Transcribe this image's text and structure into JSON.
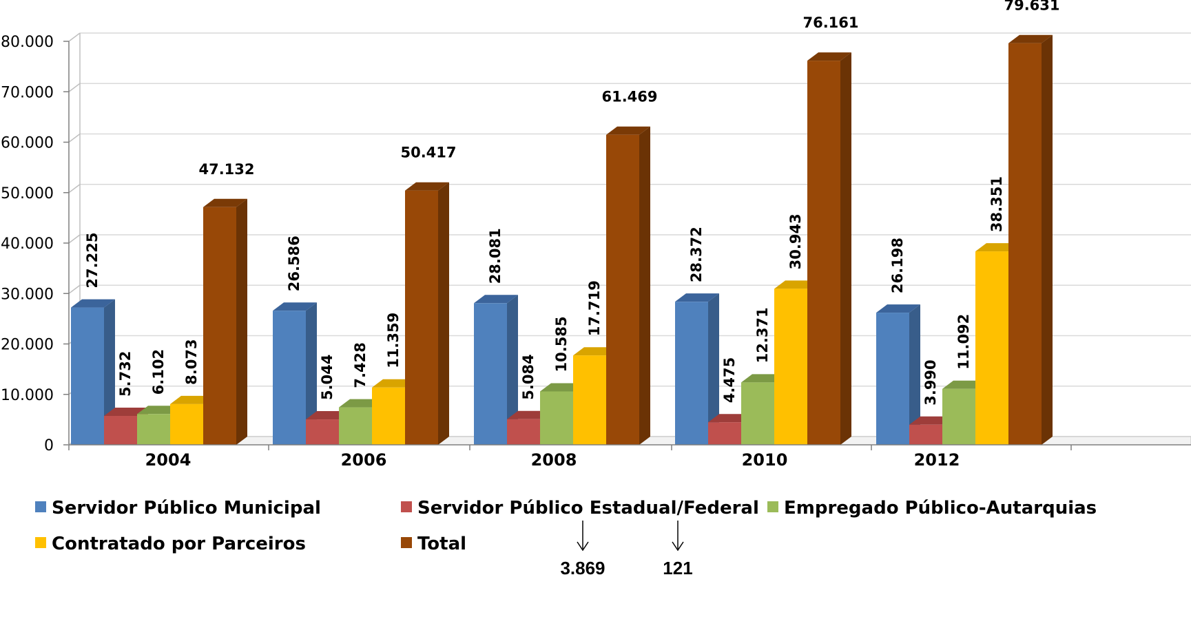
{
  "chart_data": {
    "type": "bar",
    "categories": [
      "2004",
      "2006",
      "2008",
      "2010",
      "2012"
    ],
    "series": [
      {
        "name": "Servidor Público Municipal",
        "color": "#4F81BD",
        "side": "#385D8A",
        "top": "#3B649B",
        "values": [
          27225,
          26586,
          28081,
          28372,
          26198
        ],
        "labels": [
          "27.225",
          "26.586",
          "28.081",
          "28.372",
          "26.198"
        ]
      },
      {
        "name": "Servidor Público Estadual/Federal",
        "color": "#C0504D",
        "side": "#8C3836",
        "top": "#9E3D3A",
        "values": [
          5732,
          5044,
          5084,
          4475,
          3990
        ],
        "labels": [
          "5.732",
          "5.044",
          "5.084",
          "4.475",
          "3.990"
        ]
      },
      {
        "name": "Empregado Público-Autarquias",
        "color": "#9BBB59",
        "side": "#71893F",
        "top": "#7C9A45",
        "values": [
          6102,
          7428,
          10585,
          12371,
          11092
        ],
        "labels": [
          "6.102",
          "7.428",
          "10.585",
          "12.371",
          "11.092"
        ]
      },
      {
        "name": "Contratado por Parceiros",
        "color": "#FFC000",
        "side": "#BF9000",
        "top": "#D9A400",
        "values": [
          8073,
          11359,
          17719,
          30943,
          38351
        ],
        "labels": [
          "8.073",
          "11.359",
          "17.719",
          "30.943",
          "38.351"
        ]
      },
      {
        "name": "Total",
        "color": "#984807",
        "side": "#6B3305",
        "top": "#7A3A06",
        "values": [
          47132,
          50417,
          61469,
          76161,
          79631
        ],
        "labels": [
          "47.132",
          "50.417",
          "61.469",
          "76.161",
          "79.631"
        ]
      }
    ],
    "y_ticks": [
      "0",
      "10.000",
      "20.000",
      "30.000",
      "40.000",
      "50.000",
      "60.000",
      "70.000",
      "80.000"
    ],
    "ylim": [
      0,
      80000
    ],
    "grid": true,
    "legend_position": "bottom",
    "annotations": [
      "3.869",
      "121"
    ]
  }
}
